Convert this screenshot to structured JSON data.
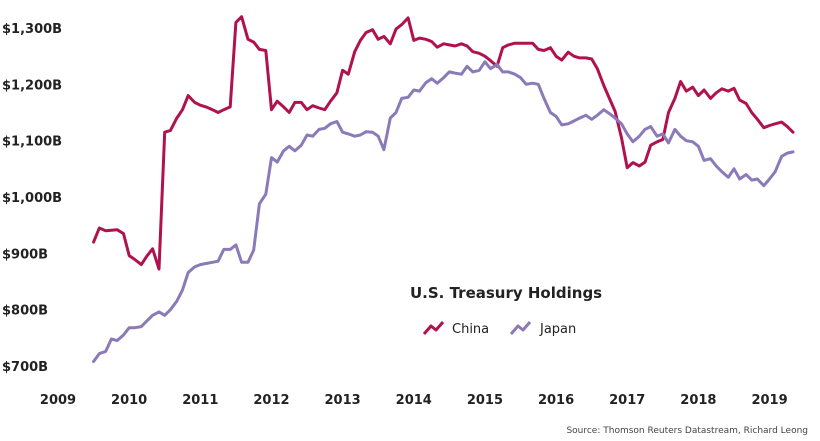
{
  "chart_data": {
    "type": "line",
    "title": "U.S. Treasury Holdings",
    "source": "Source: Thomson Reuters Datastream, Richard Leong",
    "xlabel": "",
    "ylabel": "",
    "xlim": [
      2009,
      2019.4
    ],
    "ylim": [
      700,
      1330
    ],
    "x_ticks": [
      "2009",
      "2010",
      "2011",
      "2012",
      "2013",
      "2014",
      "2015",
      "2016",
      "2017",
      "2018",
      "2019"
    ],
    "y_ticks": [
      "$700B",
      "$800B",
      "$900B",
      "$1,000B",
      "$1,100B",
      "$1,200B",
      "$1,300B"
    ],
    "grid": false,
    "legend_position": "center-right",
    "colors": {
      "China": "#b0124e",
      "Japan": "#8a7ab8"
    },
    "series": [
      {
        "name": "China",
        "x": [
          2009.5,
          2009.58,
          2009.67,
          2009.75,
          2009.83,
          2009.92,
          2010.0,
          2010.08,
          2010.17,
          2010.25,
          2010.33,
          2010.42,
          2010.5,
          2010.58,
          2010.67,
          2010.75,
          2010.83,
          2010.92,
          2011.0,
          2011.08,
          2011.17,
          2011.25,
          2011.33,
          2011.42,
          2011.5,
          2011.58,
          2011.67,
          2011.75,
          2011.83,
          2011.92,
          2012.0,
          2012.08,
          2012.17,
          2012.25,
          2012.33,
          2012.42,
          2012.5,
          2012.58,
          2012.67,
          2012.75,
          2012.83,
          2012.92,
          2013.0,
          2013.08,
          2013.17,
          2013.25,
          2013.33,
          2013.42,
          2013.5,
          2013.58,
          2013.67,
          2013.75,
          2013.83,
          2013.92,
          2014.0,
          2014.08,
          2014.17,
          2014.25,
          2014.33,
          2014.42,
          2014.5,
          2014.58,
          2014.67,
          2014.75,
          2014.83,
          2014.92,
          2015.0,
          2015.08,
          2015.17,
          2015.25,
          2015.33,
          2015.42,
          2015.5,
          2015.58,
          2015.67,
          2015.75,
          2015.83,
          2015.92,
          2016.0,
          2016.08,
          2016.17,
          2016.25,
          2016.33,
          2016.42,
          2016.5,
          2016.58,
          2016.67,
          2016.75,
          2016.83,
          2016.92,
          2017.0,
          2017.08,
          2017.17,
          2017.25,
          2017.33,
          2017.42,
          2017.5,
          2017.58,
          2017.67,
          2017.75,
          2017.83,
          2017.92,
          2018.0,
          2018.08,
          2018.17,
          2018.25,
          2018.33,
          2018.42,
          2018.5,
          2018.58,
          2018.67,
          2018.75,
          2018.83,
          2018.92,
          2019.0,
          2019.08,
          2019.17,
          2019.25,
          2019.33
        ],
        "values": [
          920,
          945,
          940,
          941,
          942,
          935,
          896,
          889,
          880,
          895,
          908,
          872,
          1115,
          1118,
          1140,
          1155,
          1180,
          1168,
          1163,
          1160,
          1155,
          1150,
          1155,
          1160,
          1310,
          1320,
          1280,
          1275,
          1262,
          1260,
          1155,
          1170,
          1160,
          1150,
          1168,
          1168,
          1155,
          1162,
          1158,
          1155,
          1170,
          1185,
          1225,
          1218,
          1258,
          1278,
          1292,
          1297,
          1280,
          1285,
          1272,
          1298,
          1306,
          1318,
          1278,
          1282,
          1280,
          1276,
          1266,
          1272,
          1270,
          1268,
          1272,
          1268,
          1258,
          1255,
          1250,
          1242,
          1232,
          1265,
          1270,
          1273,
          1273,
          1273,
          1273,
          1262,
          1260,
          1265,
          1250,
          1243,
          1257,
          1250,
          1247,
          1247,
          1245,
          1228,
          1198,
          1175,
          1152,
          1105,
          1052,
          1061,
          1055,
          1062,
          1092,
          1098,
          1102,
          1150,
          1175,
          1205,
          1188,
          1195,
          1180,
          1190,
          1175,
          1185,
          1192,
          1188,
          1193,
          1172,
          1166,
          1150,
          1138,
          1123,
          1127,
          1130,
          1133,
          1125,
          1115
        ]
      },
      {
        "name": "Japan",
        "x": [
          2009.5,
          2009.58,
          2009.67,
          2009.75,
          2009.83,
          2009.92,
          2010.0,
          2010.08,
          2010.17,
          2010.25,
          2010.33,
          2010.42,
          2010.5,
          2010.58,
          2010.67,
          2010.75,
          2010.83,
          2010.92,
          2011.0,
          2011.08,
          2011.17,
          2011.25,
          2011.33,
          2011.42,
          2011.5,
          2011.58,
          2011.67,
          2011.75,
          2011.83,
          2011.92,
          2012.0,
          2012.08,
          2012.17,
          2012.25,
          2012.33,
          2012.42,
          2012.5,
          2012.58,
          2012.67,
          2012.75,
          2012.83,
          2012.92,
          2013.0,
          2013.08,
          2013.17,
          2013.25,
          2013.33,
          2013.42,
          2013.5,
          2013.58,
          2013.67,
          2013.75,
          2013.83,
          2013.92,
          2014.0,
          2014.08,
          2014.17,
          2014.25,
          2014.33,
          2014.42,
          2014.5,
          2014.58,
          2014.67,
          2014.75,
          2014.83,
          2014.92,
          2015.0,
          2015.08,
          2015.17,
          2015.25,
          2015.33,
          2015.42,
          2015.5,
          2015.58,
          2015.67,
          2015.75,
          2015.83,
          2015.92,
          2016.0,
          2016.08,
          2016.17,
          2016.25,
          2016.33,
          2016.42,
          2016.5,
          2016.58,
          2016.67,
          2016.75,
          2016.83,
          2016.92,
          2017.0,
          2017.08,
          2017.17,
          2017.25,
          2017.33,
          2017.42,
          2017.5,
          2017.58,
          2017.67,
          2017.75,
          2017.83,
          2017.92,
          2018.0,
          2018.08,
          2018.17,
          2018.25,
          2018.33,
          2018.42,
          2018.5,
          2018.58,
          2018.67,
          2018.75,
          2018.83,
          2018.92,
          2019.0,
          2019.08,
          2019.17,
          2019.25,
          2019.33
        ],
        "values": [
          708,
          722,
          726,
          748,
          745,
          755,
          768,
          768,
          770,
          780,
          790,
          796,
          790,
          800,
          815,
          835,
          866,
          876,
          880,
          882,
          884,
          886,
          907,
          907,
          915,
          884,
          884,
          906,
          988,
          1005,
          1070,
          1062,
          1082,
          1090,
          1082,
          1092,
          1110,
          1108,
          1120,
          1122,
          1130,
          1134,
          1115,
          1112,
          1108,
          1110,
          1116,
          1115,
          1108,
          1084,
          1140,
          1150,
          1175,
          1177,
          1190,
          1188,
          1203,
          1210,
          1202,
          1212,
          1222,
          1220,
          1218,
          1232,
          1222,
          1225,
          1240,
          1228,
          1235,
          1222,
          1222,
          1218,
          1212,
          1200,
          1202,
          1200,
          1175,
          1150,
          1143,
          1128,
          1130,
          1135,
          1140,
          1145,
          1138,
          1145,
          1155,
          1148,
          1140,
          1130,
          1112,
          1098,
          1108,
          1120,
          1125,
          1108,
          1112,
          1096,
          1120,
          1108,
          1100,
          1098,
          1090,
          1065,
          1068,
          1055,
          1045,
          1035,
          1050,
          1032,
          1040,
          1030,
          1032,
          1020,
          1032,
          1045,
          1072,
          1078,
          1080
        ]
      }
    ]
  }
}
